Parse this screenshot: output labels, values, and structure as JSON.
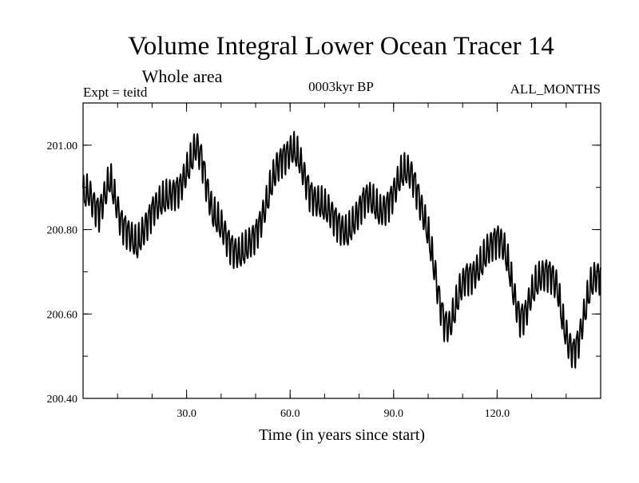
{
  "chart_data": {
    "type": "line",
    "title": "Volume Integral Lower Ocean Tracer 14",
    "subtitle": "Whole area",
    "expt_label": "Expt = teitd",
    "period_label": "0003kyr BP",
    "months_label": "ALL_MONTHS",
    "xlabel": "Time (in years since start)",
    "ylabel": "",
    "xlim": [
      0,
      150
    ],
    "ylim": [
      200.4,
      201.1
    ],
    "x_ticks": [
      30,
      60,
      90,
      120
    ],
    "x_tick_labels": [
      "30.0",
      "60.0",
      "90.0",
      "120.0"
    ],
    "x_minor_step": 10,
    "y_ticks": [
      200.4,
      200.6,
      200.8,
      201.0
    ],
    "y_tick_labels": [
      "200.40",
      "200.60",
      "200.80",
      "201.00"
    ],
    "y_minor_step": 0.1,
    "series": [
      {
        "name": "Whole area",
        "x_start": 0,
        "x_step": 1,
        "trend": [
          200.88,
          200.89,
          200.86,
          200.84,
          200.88,
          200.92,
          200.87,
          200.82,
          200.8,
          200.78,
          200.76,
          200.79,
          200.82,
          200.85,
          200.86,
          200.87,
          200.88,
          200.89,
          200.9,
          200.93,
          200.96,
          201.0,
          200.97,
          200.9,
          200.84,
          200.82,
          200.8,
          200.77,
          200.75,
          200.74,
          200.75,
          200.77,
          200.79,
          200.82,
          200.86,
          200.91,
          200.95,
          200.97,
          200.98,
          200.99,
          200.97,
          200.93,
          200.89,
          200.87,
          200.86,
          200.85,
          200.84,
          200.82,
          200.8,
          200.79,
          200.81,
          200.84,
          200.87,
          200.88,
          200.86,
          200.84,
          200.85,
          200.87,
          200.9,
          200.93,
          200.94,
          200.93,
          200.89,
          200.84,
          200.79,
          200.72,
          200.64,
          200.58,
          200.57,
          200.61,
          200.66,
          200.69,
          200.69,
          200.7,
          200.72,
          200.75,
          200.77,
          200.78,
          200.76,
          200.71,
          200.64,
          200.59,
          200.6,
          200.64,
          200.67,
          200.69,
          200.7,
          200.69,
          200.66,
          200.58,
          200.53,
          200.51,
          200.54,
          200.6,
          200.66,
          200.69
        ],
        "trend_step": 1.5625,
        "ripple": 0.035
      }
    ]
  }
}
